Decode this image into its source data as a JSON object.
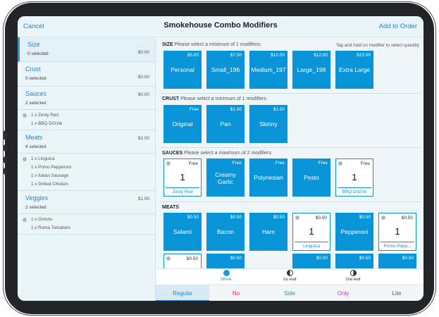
{
  "header": {
    "cancel": "Cancel",
    "title": "Smokehouse Combo Modifiers",
    "add": "Add to Order"
  },
  "sidebar": {
    "groups": [
      {
        "name": "Size",
        "selected": "0 selected",
        "price": "$0.00",
        "items": []
      },
      {
        "name": "Crust",
        "selected": "0 selected",
        "price": "$0.00",
        "items": []
      },
      {
        "name": "Sauces",
        "selected": "2 selected",
        "price": "$0.00",
        "items": [
          "1 x Zesty Red",
          "1 x BBQ Drizzle"
        ]
      },
      {
        "name": "Meats",
        "selected": "4 selected",
        "price": "$2.00",
        "items": [
          "1 x Linguica",
          "1 x Primo Pepperoni",
          "1 x Italian Sausage",
          "1 x Grilled Chicken"
        ]
      },
      {
        "name": "Veggies",
        "selected": "2 selected",
        "price": "$1.00",
        "items": [
          "1 x Onions",
          "1 x Roma Tomatoes"
        ]
      }
    ]
  },
  "sections": {
    "size": {
      "title": "SIZE",
      "hint": "Please select a minimum of 1 modifiers.",
      "right_hint": "Tap and hold on modifier to select quantity",
      "tiles": [
        {
          "price": "$5.00",
          "label": "Personal"
        },
        {
          "price": "$7.00",
          "label": "Small_196"
        },
        {
          "price": "$10.00",
          "label": "Medium_197"
        },
        {
          "price": "$12.00",
          "label": "Large_198"
        },
        {
          "price": "$15.00",
          "label": "Extra Large"
        }
      ]
    },
    "crust": {
      "title": "CRUST",
      "hint": "Please select a minimum of 1 modifiers.",
      "tiles": [
        {
          "price": "Free",
          "label": "Original"
        },
        {
          "price": "$1.00",
          "label": "Pan"
        },
        {
          "price": "$1.00",
          "label": "Skinny"
        }
      ]
    },
    "sauces": {
      "title": "SAUCES",
      "hint": "Please select a maximum of 2 modifiers.",
      "tiles": [
        {
          "price": "Free",
          "qty": "1",
          "label": "Zesty Red"
        },
        {
          "price": "Free",
          "label": "Creamy Garlic"
        },
        {
          "price": "Free",
          "label": "Polynesian"
        },
        {
          "price": "Free",
          "label": "Pesto"
        },
        {
          "price": "Free",
          "qty": "1",
          "label": "BBQ Drizzle"
        }
      ]
    },
    "meats": {
      "title": "MEATS",
      "tiles": [
        {
          "price": "$0.50",
          "label": "Salami"
        },
        {
          "price": "$0.50",
          "label": "Bacon"
        },
        {
          "price": "$0.50",
          "label": "Ham"
        },
        {
          "price": "$0.50",
          "qty": "1",
          "label": "Linguica"
        },
        {
          "price": "$0.50",
          "label": "Pepperoni"
        },
        {
          "price": "$0.50",
          "qty": "1",
          "label": "Primo Pepp..."
        }
      ],
      "row2_prices": [
        "$0.50",
        "$0.50",
        "$0.50",
        "$0.50",
        "$0.50"
      ]
    }
  },
  "portion": {
    "whole": "Whole",
    "first_half": "1st Half",
    "second_half": "2nd Half"
  },
  "tabs": {
    "regular": "Regular",
    "no": "No",
    "side": "Side",
    "only": "Only",
    "lite": "Lite"
  },
  "colors": {
    "accent": "#0a94d8",
    "no": "#e0245e",
    "side": "#1fa65a",
    "only": "#b23fbf",
    "lite": "#555555"
  }
}
